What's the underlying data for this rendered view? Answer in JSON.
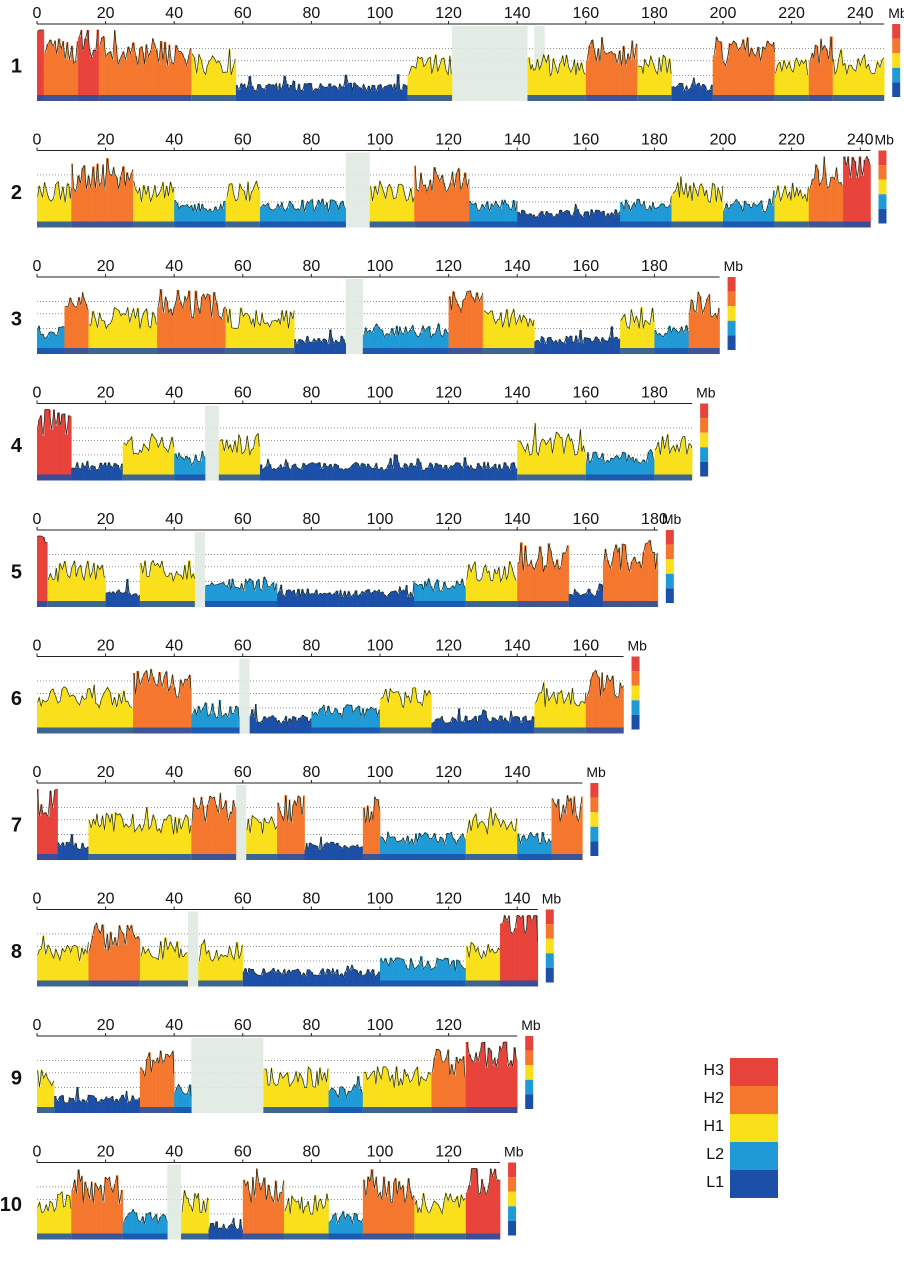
{
  "chart_data": {
    "type": "area",
    "unit_label": "Mb",
    "class_colors": {
      "H3": "#e8433a",
      "H2": "#f5772e",
      "H1": "#f9e01a",
      "L2": "#1f9ad6",
      "L1": "#1c4fa8"
    },
    "legend": [
      {
        "label": "H3",
        "color": "#e8433a"
      },
      {
        "label": "H2",
        "color": "#f5772e"
      },
      {
        "label": "H1",
        "color": "#f9e01a"
      },
      {
        "label": "L2",
        "color": "#1f9ad6"
      },
      {
        "label": "L1",
        "color": "#1c4fa8"
      }
    ],
    "chromosomes": [
      {
        "label": "1",
        "length": 247,
        "ticks": [
          0,
          20,
          40,
          60,
          80,
          100,
          120,
          140,
          160,
          180,
          200,
          220,
          240
        ],
        "gaps": [
          [
            121,
            143
          ],
          [
            145,
            148
          ]
        ],
        "segments": [
          [
            0,
            2,
            "H3"
          ],
          [
            2,
            12,
            "H2"
          ],
          [
            12,
            18,
            "H3"
          ],
          [
            18,
            45,
            "H2"
          ],
          [
            45,
            58,
            "H1"
          ],
          [
            58,
            108,
            "L1"
          ],
          [
            108,
            121,
            "H1"
          ],
          [
            143,
            160,
            "H1"
          ],
          [
            160,
            175,
            "H2"
          ],
          [
            175,
            185,
            "H1"
          ],
          [
            185,
            197,
            "L1"
          ],
          [
            197,
            215,
            "H2"
          ],
          [
            215,
            225,
            "H1"
          ],
          [
            225,
            232,
            "H2"
          ],
          [
            232,
            247,
            "H1"
          ]
        ]
      },
      {
        "label": "2",
        "length": 243,
        "ticks": [
          0,
          20,
          40,
          60,
          80,
          100,
          120,
          140,
          160,
          180,
          200,
          220,
          240
        ],
        "gaps": [
          [
            90,
            97
          ]
        ],
        "segments": [
          [
            0,
            10,
            "H1"
          ],
          [
            10,
            28,
            "H2"
          ],
          [
            28,
            40,
            "H1"
          ],
          [
            40,
            55,
            "L2"
          ],
          [
            55,
            65,
            "H1"
          ],
          [
            65,
            90,
            "L2"
          ],
          [
            97,
            110,
            "H1"
          ],
          [
            110,
            126,
            "H2"
          ],
          [
            126,
            140,
            "L2"
          ],
          [
            140,
            170,
            "L1"
          ],
          [
            170,
            185,
            "L2"
          ],
          [
            185,
            200,
            "H1"
          ],
          [
            200,
            215,
            "L2"
          ],
          [
            215,
            225,
            "H1"
          ],
          [
            225,
            235,
            "H2"
          ],
          [
            235,
            243,
            "H3"
          ]
        ]
      },
      {
        "label": "3",
        "length": 199,
        "ticks": [
          0,
          20,
          40,
          60,
          80,
          100,
          120,
          140,
          160,
          180
        ],
        "gaps": [
          [
            90,
            95
          ]
        ],
        "segments": [
          [
            0,
            8,
            "L2"
          ],
          [
            8,
            15,
            "H2"
          ],
          [
            15,
            35,
            "H1"
          ],
          [
            35,
            55,
            "H2"
          ],
          [
            55,
            75,
            "H1"
          ],
          [
            75,
            90,
            "L1"
          ],
          [
            95,
            120,
            "L2"
          ],
          [
            120,
            130,
            "H2"
          ],
          [
            130,
            145,
            "H1"
          ],
          [
            145,
            170,
            "L1"
          ],
          [
            170,
            180,
            "H1"
          ],
          [
            180,
            190,
            "L2"
          ],
          [
            190,
            199,
            "H2"
          ]
        ]
      },
      {
        "label": "4",
        "length": 191,
        "ticks": [
          0,
          20,
          40,
          60,
          80,
          100,
          120,
          140,
          160,
          180
        ],
        "gaps": [
          [
            49,
            53
          ]
        ],
        "segments": [
          [
            0,
            10,
            "H3"
          ],
          [
            10,
            25,
            "L1"
          ],
          [
            25,
            40,
            "H1"
          ],
          [
            40,
            49,
            "L2"
          ],
          [
            53,
            65,
            "H1"
          ],
          [
            65,
            140,
            "L1"
          ],
          [
            140,
            160,
            "H1"
          ],
          [
            160,
            180,
            "L2"
          ],
          [
            180,
            191,
            "H1"
          ]
        ]
      },
      {
        "label": "5",
        "length": 181,
        "ticks": [
          0,
          20,
          40,
          60,
          80,
          100,
          120,
          140,
          160,
          180
        ],
        "gaps": [
          [
            46,
            49
          ]
        ],
        "segments": [
          [
            0,
            3,
            "H3"
          ],
          [
            3,
            20,
            "H1"
          ],
          [
            20,
            30,
            "L1"
          ],
          [
            30,
            46,
            "H1"
          ],
          [
            49,
            70,
            "L2"
          ],
          [
            70,
            110,
            "L1"
          ],
          [
            110,
            125,
            "L2"
          ],
          [
            125,
            140,
            "H1"
          ],
          [
            140,
            155,
            "H2"
          ],
          [
            155,
            165,
            "L1"
          ],
          [
            165,
            181,
            "H2"
          ]
        ]
      },
      {
        "label": "6",
        "length": 171,
        "ticks": [
          0,
          20,
          40,
          60,
          80,
          100,
          120,
          140,
          160
        ],
        "gaps": [
          [
            59,
            62
          ]
        ],
        "segments": [
          [
            0,
            28,
            "H1"
          ],
          [
            28,
            45,
            "H2"
          ],
          [
            45,
            59,
            "L2"
          ],
          [
            62,
            80,
            "L1"
          ],
          [
            80,
            100,
            "L2"
          ],
          [
            100,
            115,
            "H1"
          ],
          [
            115,
            145,
            "L1"
          ],
          [
            145,
            160,
            "H1"
          ],
          [
            160,
            171,
            "H2"
          ]
        ]
      },
      {
        "label": "7",
        "length": 159,
        "ticks": [
          0,
          20,
          40,
          60,
          80,
          100,
          120,
          140
        ],
        "gaps": [
          [
            58,
            61
          ]
        ],
        "segments": [
          [
            0,
            6,
            "H3"
          ],
          [
            6,
            15,
            "L1"
          ],
          [
            15,
            45,
            "H1"
          ],
          [
            45,
            58,
            "H2"
          ],
          [
            61,
            70,
            "H1"
          ],
          [
            70,
            78,
            "H2"
          ],
          [
            78,
            95,
            "L1"
          ],
          [
            95,
            100,
            "H2"
          ],
          [
            100,
            125,
            "L2"
          ],
          [
            125,
            140,
            "H1"
          ],
          [
            140,
            150,
            "L2"
          ],
          [
            150,
            159,
            "H2"
          ]
        ]
      },
      {
        "label": "8",
        "length": 146,
        "ticks": [
          0,
          20,
          40,
          60,
          80,
          100,
          120,
          140
        ],
        "gaps": [
          [
            44,
            47
          ]
        ],
        "segments": [
          [
            0,
            15,
            "H1"
          ],
          [
            15,
            30,
            "H2"
          ],
          [
            30,
            44,
            "H1"
          ],
          [
            47,
            60,
            "H1"
          ],
          [
            60,
            100,
            "L1"
          ],
          [
            100,
            125,
            "L2"
          ],
          [
            125,
            135,
            "H1"
          ],
          [
            135,
            146,
            "H3"
          ]
        ]
      },
      {
        "label": "9",
        "length": 140,
        "ticks": [
          0,
          20,
          40,
          60,
          80,
          100,
          120
        ],
        "gaps": [
          [
            45,
            66
          ]
        ],
        "segments": [
          [
            0,
            5,
            "H1"
          ],
          [
            5,
            30,
            "L1"
          ],
          [
            30,
            40,
            "H2"
          ],
          [
            40,
            45,
            "L2"
          ],
          [
            66,
            85,
            "H1"
          ],
          [
            85,
            95,
            "L2"
          ],
          [
            95,
            115,
            "H1"
          ],
          [
            115,
            125,
            "H2"
          ],
          [
            125,
            140,
            "H3"
          ]
        ]
      },
      {
        "label": "10",
        "length": 135,
        "ticks": [
          0,
          20,
          40,
          60,
          80,
          100,
          120
        ],
        "gaps": [
          [
            38,
            42
          ]
        ],
        "segments": [
          [
            0,
            10,
            "H1"
          ],
          [
            10,
            25,
            "H2"
          ],
          [
            25,
            38,
            "L2"
          ],
          [
            42,
            50,
            "H1"
          ],
          [
            50,
            60,
            "L1"
          ],
          [
            60,
            72,
            "H2"
          ],
          [
            72,
            85,
            "H1"
          ],
          [
            85,
            95,
            "L2"
          ],
          [
            95,
            110,
            "H2"
          ],
          [
            110,
            125,
            "H1"
          ],
          [
            125,
            135,
            "H3"
          ]
        ]
      }
    ]
  }
}
